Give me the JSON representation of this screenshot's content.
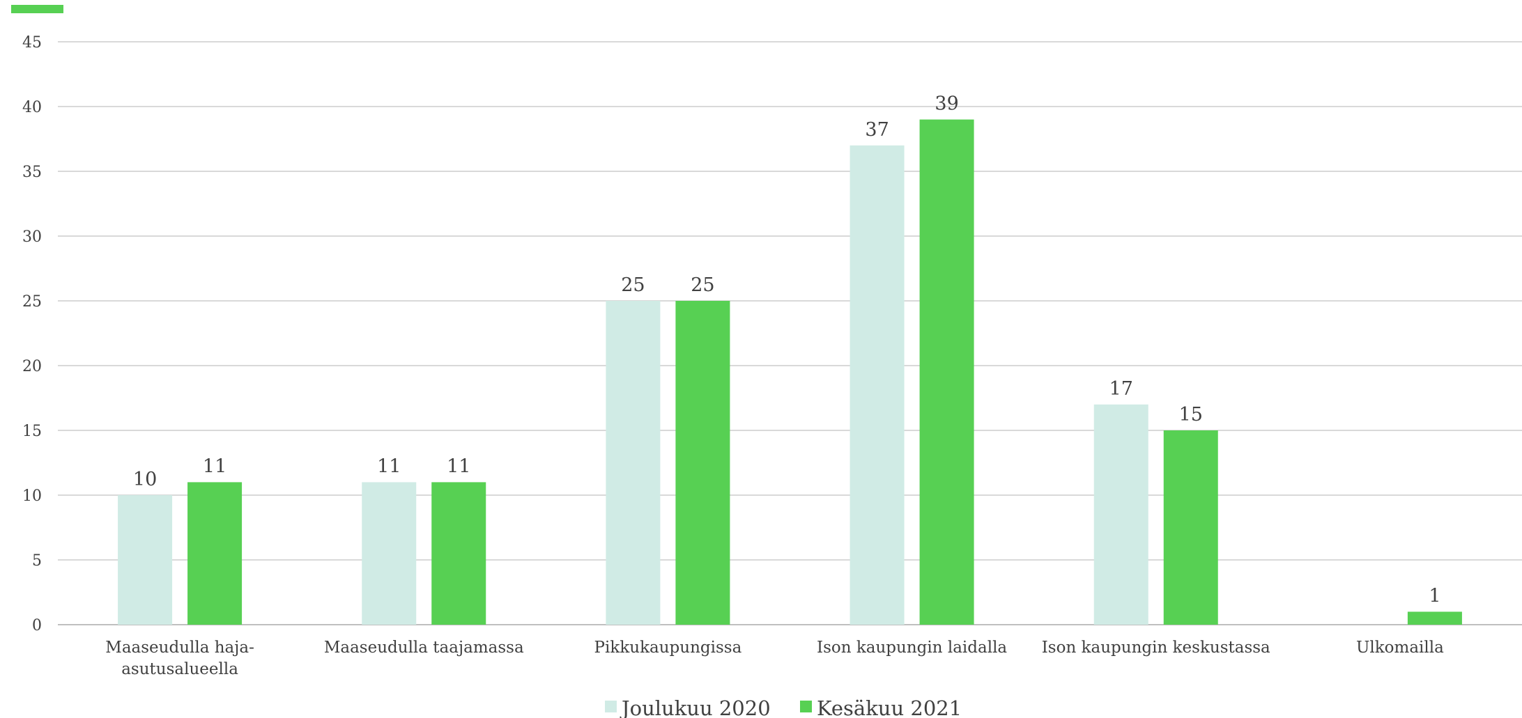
{
  "chart_data": {
    "type": "bar",
    "categories": [
      [
        "Maaseudulla haja-",
        "asutusalueella"
      ],
      [
        "Maaseudulla taajamassa"
      ],
      [
        "Pikkukaupungissa"
      ],
      [
        "Ison kaupungin laidalla"
      ],
      [
        "Ison kaupungin keskustassa"
      ],
      [
        "Ulkomailla"
      ]
    ],
    "series": [
      {
        "name": "Joulukuu 2020",
        "values": [
          10,
          11,
          25,
          37,
          17,
          null
        ],
        "color": "#d0ebe5"
      },
      {
        "name": "Kesäkuu 2021",
        "values": [
          11,
          11,
          25,
          39,
          15,
          1
        ],
        "color": "#57d053"
      }
    ],
    "ylim": [
      0,
      45
    ],
    "yticks": [
      "0",
      "5",
      "10",
      "15",
      "20",
      "25",
      "30",
      "35",
      "40",
      "45"
    ],
    "grid": true,
    "legend_position": "bottom-center",
    "accent_color": "#57d053"
  }
}
